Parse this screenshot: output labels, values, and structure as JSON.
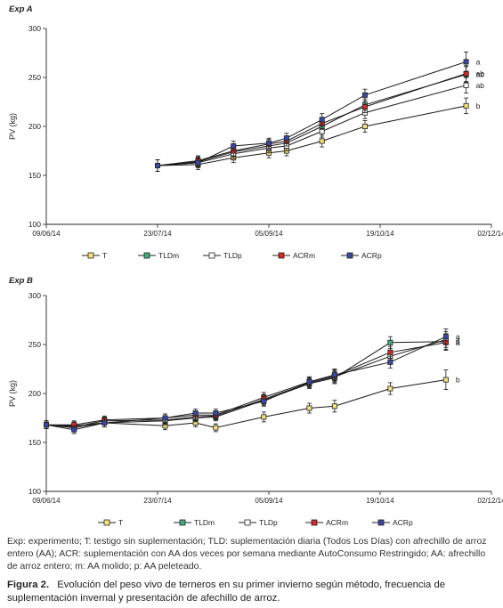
{
  "colors": {
    "T": "#f2e27a",
    "TLDm": "#3fae7e",
    "TLDp": "#ffffff",
    "ACRm": "#d42a2a",
    "ACRp": "#3a46a8",
    "line": "#1a1a1a"
  },
  "chart_data": [
    {
      "type": "line",
      "title": "Exp A",
      "xlabel": "",
      "ylabel": "PV (kg)",
      "x_ticks": [
        "09/06/14",
        "23/07/14",
        "05/09/14",
        "19/10/14",
        "02/12/14"
      ],
      "y_ticks": [
        "100",
        "150",
        "200",
        "250",
        "300"
      ],
      "ylim": [
        100,
        300
      ],
      "x_range": [
        "09/06/14",
        "02/12/14"
      ],
      "x_dates": [
        "23/07/14",
        "08/08/14",
        "22/08/14",
        "05/09/14",
        "12/09/14",
        "26/09/14",
        "10/10/14",
        "24/10/14",
        "22/11/14"
      ],
      "series": [
        {
          "name": "T",
          "key": "T",
          "values": [
            160,
            161,
            168,
            173,
            175,
            185,
            200,
            221
          ],
          "dates": [
            "23/07/14",
            "08/08/14",
            "22/08/14",
            "05/09/14",
            "12/09/14",
            "26/09/14",
            "13/10/14",
            "22/11/14"
          ],
          "err": [
            6,
            5,
            5,
            5,
            5,
            6,
            6,
            8
          ],
          "label": "b"
        },
        {
          "name": "TLDm",
          "key": "TLDm",
          "values": [
            160,
            164,
            174,
            180,
            183,
            200,
            222,
            253
          ],
          "dates": [
            "23/07/14",
            "08/08/14",
            "22/08/14",
            "05/09/14",
            "12/09/14",
            "26/09/14",
            "13/10/14",
            "22/11/14"
          ],
          "err": [
            6,
            5,
            5,
            5,
            5,
            6,
            6,
            8
          ],
          "label": "ab"
        },
        {
          "name": "TLDp",
          "key": "TLDp",
          "values": [
            160,
            163,
            172,
            178,
            180,
            195,
            214,
            242
          ],
          "dates": [
            "23/07/14",
            "08/08/14",
            "22/08/14",
            "05/09/14",
            "12/09/14",
            "26/09/14",
            "13/10/14",
            "22/11/14"
          ],
          "err": [
            6,
            5,
            5,
            5,
            5,
            6,
            6,
            8
          ],
          "label": "ab"
        },
        {
          "name": "ACRm",
          "key": "ACRm",
          "values": [
            160,
            165,
            175,
            182,
            185,
            203,
            220,
            254
          ],
          "dates": [
            "23/07/14",
            "08/08/14",
            "22/08/14",
            "05/09/14",
            "12/09/14",
            "26/09/14",
            "13/10/14",
            "22/11/14"
          ],
          "err": [
            6,
            5,
            5,
            5,
            5,
            6,
            6,
            8
          ],
          "label": "ab"
        },
        {
          "name": "ACRp",
          "key": "ACRp",
          "values": [
            160,
            163,
            180,
            183,
            188,
            207,
            232,
            266
          ],
          "dates": [
            "23/07/14",
            "08/08/14",
            "22/08/14",
            "05/09/14",
            "12/09/14",
            "26/09/14",
            "13/10/14",
            "22/11/14"
          ],
          "err": [
            6,
            5,
            5,
            5,
            5,
            6,
            6,
            10
          ],
          "label": "a"
        }
      ]
    },
    {
      "type": "line",
      "title": "Exp B",
      "xlabel": "",
      "ylabel": "PV (kg)",
      "x_ticks": [
        "09/06/14",
        "23/07/14",
        "05/09/14",
        "19/10/14",
        "02/12/14"
      ],
      "y_ticks": [
        "100",
        "150",
        "200",
        "250",
        "300"
      ],
      "ylim": [
        100,
        300
      ],
      "x_range": [
        "09/06/14",
        "02/12/14"
      ],
      "series": [
        {
          "name": "T",
          "key": "T",
          "values": [
            168,
            167,
            170,
            167,
            170,
            165,
            176,
            185,
            187,
            205,
            214
          ],
          "dates": [
            "09/06/14",
            "20/06/14",
            "02/07/14",
            "26/07/14",
            "07/08/14",
            "15/08/14",
            "03/09/14",
            "21/09/14",
            "01/10/14",
            "23/10/14",
            "14/11/14"
          ],
          "err": [
            4,
            4,
            4,
            4,
            4,
            4,
            5,
            5,
            6,
            6,
            10
          ],
          "label": "b"
        },
        {
          "name": "TLDm",
          "key": "TLDm",
          "values": [
            168,
            165,
            170,
            172,
            175,
            176,
            193,
            210,
            216,
            252,
            253
          ],
          "dates": [
            "09/06/14",
            "20/06/14",
            "02/07/14",
            "26/07/14",
            "07/08/14",
            "15/08/14",
            "03/09/14",
            "21/09/14",
            "01/10/14",
            "23/10/14",
            "14/11/14"
          ],
          "err": [
            4,
            4,
            4,
            4,
            4,
            4,
            5,
            5,
            6,
            6,
            8
          ],
          "label": "a"
        },
        {
          "name": "TLDp",
          "key": "TLDp",
          "values": [
            168,
            166,
            172,
            173,
            176,
            177,
            194,
            211,
            217,
            238,
            255
          ],
          "dates": [
            "09/06/14",
            "20/06/14",
            "02/07/14",
            "26/07/14",
            "07/08/14",
            "15/08/14",
            "03/09/14",
            "21/09/14",
            "01/10/14",
            "23/10/14",
            "14/11/14"
          ],
          "err": [
            4,
            4,
            4,
            4,
            4,
            4,
            5,
            5,
            6,
            6,
            8
          ],
          "label": "a"
        },
        {
          "name": "ACRm",
          "key": "ACRm",
          "values": [
            168,
            168,
            173,
            175,
            178,
            178,
            196,
            212,
            218,
            242,
            252
          ],
          "dates": [
            "09/06/14",
            "20/06/14",
            "02/07/14",
            "26/07/14",
            "07/08/14",
            "15/08/14",
            "03/09/14",
            "21/09/14",
            "01/10/14",
            "23/10/14",
            "14/11/14"
          ],
          "err": [
            4,
            4,
            4,
            4,
            4,
            4,
            5,
            5,
            6,
            6,
            8
          ],
          "label": "a"
        },
        {
          "name": "ACRp",
          "key": "ACRp",
          "values": [
            168,
            163,
            170,
            175,
            180,
            180,
            192,
            212,
            219,
            232,
            258
          ],
          "dates": [
            "09/06/14",
            "20/06/14",
            "02/07/14",
            "26/07/14",
            "07/08/14",
            "15/08/14",
            "03/09/14",
            "21/09/14",
            "01/10/14",
            "23/10/14",
            "14/11/14"
          ],
          "err": [
            4,
            4,
            4,
            4,
            4,
            4,
            5,
            5,
            6,
            6,
            8
          ],
          "label": "a"
        }
      ]
    }
  ],
  "legend_items": [
    "T",
    "TLDm",
    "TLDp",
    "ACRm",
    "ACRp"
  ],
  "caption": "Exp: experimento; T: testigo sin suplementación; TLD: suplementación diaria (Todos Los Días) con afrechillo de arroz entero (AA); ACR: suplementación con AA dos veces por semana mediante AutoConsumo Restringido; AA: afrechillo de arroz entero; m: AA molido; p: AA peleteado.",
  "figure_label": "Figura 2.",
  "figure_text": "Evolución del peso vivo de terneros en su primer invierno según método, frecuencia de suplementación invernal y presentación de afechillo de arroz."
}
